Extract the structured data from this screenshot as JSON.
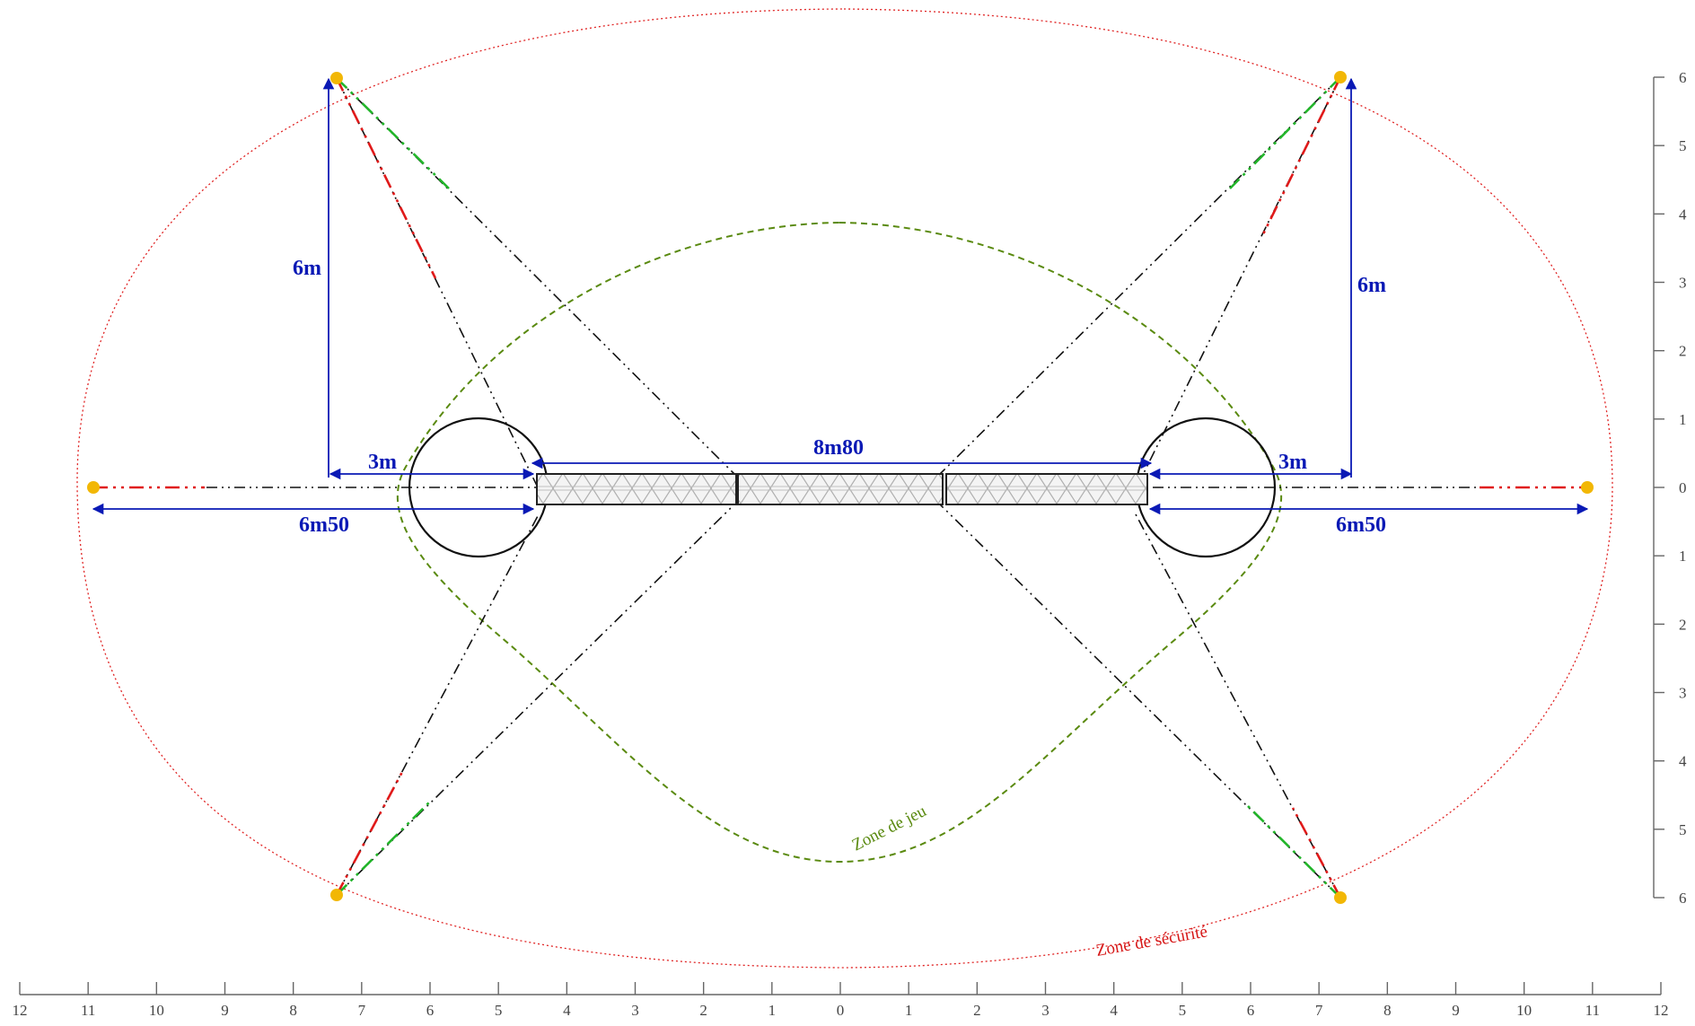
{
  "dimensions": {
    "top_span": "8m80",
    "left_vertical": "6m",
    "right_vertical": "6m",
    "left_offset": "3m",
    "right_offset": "3m",
    "left_total": "6m50",
    "right_total": "6m50"
  },
  "zones": {
    "play": "Zone de jeu",
    "safety": "Zone de sécurité"
  },
  "ruler_x_labels": [
    "12",
    "11",
    "10",
    "9",
    "8",
    "7",
    "6",
    "5",
    "4",
    "3",
    "2",
    "1",
    "0",
    "1",
    "2",
    "3",
    "4",
    "5",
    "6",
    "7",
    "8",
    "9",
    "10",
    "11",
    "12"
  ],
  "ruler_y_labels": [
    "6",
    "5",
    "4",
    "3",
    "2",
    "1",
    "0",
    "1",
    "2",
    "3",
    "4",
    "5",
    "6"
  ],
  "colors": {
    "dimension": "#0a19b5",
    "safety": "#d61818",
    "play": "#5a8a10",
    "anchor": "#f2b705",
    "guy_red": "#e01a1a",
    "guy_green": "#22b52a"
  }
}
